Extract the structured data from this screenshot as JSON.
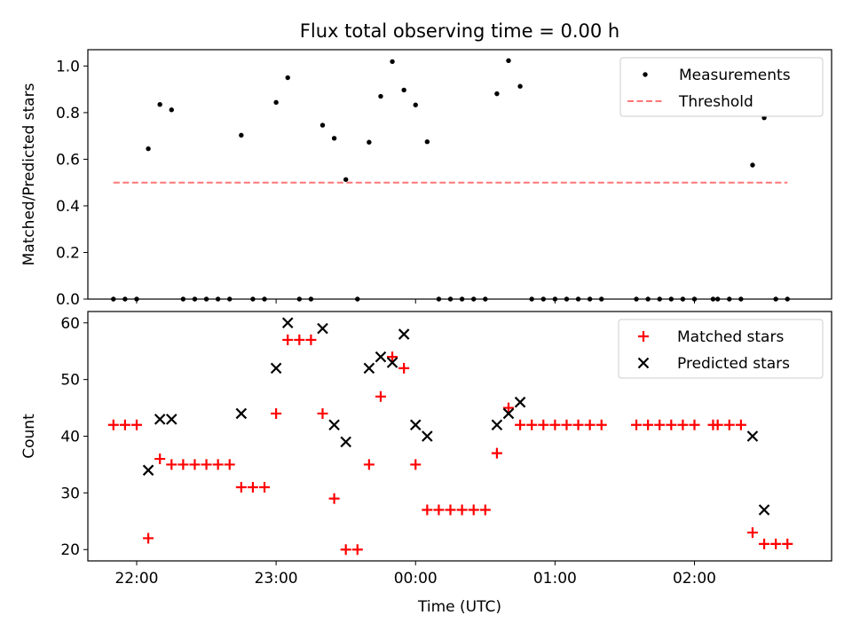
{
  "chart_data": [
    {
      "type": "scatter",
      "title": "Flux total observing time = 0.00 h",
      "xlabel": "",
      "ylabel": "Matched/Predicted stars",
      "ylim": [
        0,
        1.07
      ],
      "yticks": [
        0.0,
        0.2,
        0.4,
        0.6,
        0.8,
        1.0
      ],
      "ytick_labels": [
        "0.0",
        "0.2",
        "0.4",
        "0.6",
        "0.8",
        "1.0"
      ],
      "xlim": [
        "2024-01-01T21:39:00",
        "2024-01-02T02:59:00"
      ],
      "xticks": [
        "2024-01-01T22:00:00",
        "2024-01-01T23:00:00",
        "2024-01-02T00:00:00",
        "2024-01-02T01:00:00",
        "2024-01-02T02:00:00"
      ],
      "xtick_labels": [
        "",
        "",
        "",
        "",
        ""
      ],
      "legend_position": "top-right",
      "colors": {
        "measurements": "#000000",
        "threshold": "#ff7777"
      },
      "series": [
        {
          "name": "Measurements",
          "kind": "points",
          "points": [
            {
              "x": "2024-01-01T21:50:00",
              "y": 0.0
            },
            {
              "x": "2024-01-01T21:55:00",
              "y": 0.0
            },
            {
              "x": "2024-01-01T22:00:00",
              "y": 0.0
            },
            {
              "x": "2024-01-01T22:05:00",
              "y": 0.645
            },
            {
              "x": "2024-01-01T22:10:00",
              "y": 0.835
            },
            {
              "x": "2024-01-01T22:15:00",
              "y": 0.812
            },
            {
              "x": "2024-01-01T22:20:00",
              "y": 0.0
            },
            {
              "x": "2024-01-01T22:25:00",
              "y": 0.0
            },
            {
              "x": "2024-01-01T22:30:00",
              "y": 0.0
            },
            {
              "x": "2024-01-01T22:35:00",
              "y": 0.0
            },
            {
              "x": "2024-01-01T22:40:00",
              "y": 0.0
            },
            {
              "x": "2024-01-01T22:45:00",
              "y": 0.703
            },
            {
              "x": "2024-01-01T22:50:00",
              "y": 0.0
            },
            {
              "x": "2024-01-01T22:55:00",
              "y": 0.0
            },
            {
              "x": "2024-01-01T23:00:00",
              "y": 0.844
            },
            {
              "x": "2024-01-01T23:05:00",
              "y": 0.95
            },
            {
              "x": "2024-01-01T23:10:00",
              "y": 0.0
            },
            {
              "x": "2024-01-01T23:15:00",
              "y": 0.0
            },
            {
              "x": "2024-01-01T23:20:00",
              "y": 0.746
            },
            {
              "x": "2024-01-01T23:25:00",
              "y": 0.69
            },
            {
              "x": "2024-01-01T23:30:00",
              "y": 0.513
            },
            {
              "x": "2024-01-01T23:35:00",
              "y": 0.0
            },
            {
              "x": "2024-01-01T23:40:00",
              "y": 0.673
            },
            {
              "x": "2024-01-01T23:45:00",
              "y": 0.87
            },
            {
              "x": "2024-01-01T23:50:00",
              "y": 1.019
            },
            {
              "x": "2024-01-01T23:55:00",
              "y": 0.897
            },
            {
              "x": "2024-01-02T00:00:00",
              "y": 0.833
            },
            {
              "x": "2024-01-02T00:05:00",
              "y": 0.675
            },
            {
              "x": "2024-01-02T00:10:00",
              "y": 0.0
            },
            {
              "x": "2024-01-02T00:15:00",
              "y": 0.0
            },
            {
              "x": "2024-01-02T00:20:00",
              "y": 0.0
            },
            {
              "x": "2024-01-02T00:25:00",
              "y": 0.0
            },
            {
              "x": "2024-01-02T00:30:00",
              "y": 0.0
            },
            {
              "x": "2024-01-02T00:35:00",
              "y": 0.881
            },
            {
              "x": "2024-01-02T00:40:00",
              "y": 1.023
            },
            {
              "x": "2024-01-02T00:45:00",
              "y": 0.913
            },
            {
              "x": "2024-01-02T00:50:00",
              "y": 0.0
            },
            {
              "x": "2024-01-02T00:55:00",
              "y": 0.0
            },
            {
              "x": "2024-01-02T01:00:00",
              "y": 0.0
            },
            {
              "x": "2024-01-02T01:05:00",
              "y": 0.0
            },
            {
              "x": "2024-01-02T01:10:00",
              "y": 0.0
            },
            {
              "x": "2024-01-02T01:15:00",
              "y": 0.0
            },
            {
              "x": "2024-01-02T01:20:00",
              "y": 0.0
            },
            {
              "x": "2024-01-02T01:35:00",
              "y": 0.0
            },
            {
              "x": "2024-01-02T01:40:00",
              "y": 0.0
            },
            {
              "x": "2024-01-02T01:45:00",
              "y": 0.0
            },
            {
              "x": "2024-01-02T01:50:00",
              "y": 0.0
            },
            {
              "x": "2024-01-02T01:55:00",
              "y": 0.0
            },
            {
              "x": "2024-01-02T02:00:00",
              "y": 0.0
            },
            {
              "x": "2024-01-02T02:08:00",
              "y": 0.0
            },
            {
              "x": "2024-01-02T02:10:00",
              "y": 0.0
            },
            {
              "x": "2024-01-02T02:15:00",
              "y": 0.0
            },
            {
              "x": "2024-01-02T02:20:00",
              "y": 0.0
            },
            {
              "x": "2024-01-02T02:25:00",
              "y": 0.575
            },
            {
              "x": "2024-01-02T02:30:00",
              "y": 0.778
            },
            {
              "x": "2024-01-02T02:35:00",
              "y": 0.0
            },
            {
              "x": "2024-01-02T02:40:00",
              "y": 0.0
            }
          ]
        },
        {
          "name": "Threshold",
          "kind": "dashed-line",
          "points": [
            {
              "x": "2024-01-01T21:50:00",
              "y": 0.5
            },
            {
              "x": "2024-01-02T02:40:00",
              "y": 0.5
            }
          ]
        }
      ]
    },
    {
      "type": "scatter",
      "title": "",
      "xlabel": "Time (UTC)",
      "ylabel": "Count",
      "ylim": [
        18,
        62
      ],
      "yticks": [
        20,
        30,
        40,
        50,
        60
      ],
      "ytick_labels": [
        "20",
        "30",
        "40",
        "50",
        "60"
      ],
      "xlim": [
        "2024-01-01T21:39:00",
        "2024-01-02T02:59:00"
      ],
      "xticks": [
        "2024-01-01T22:00:00",
        "2024-01-01T23:00:00",
        "2024-01-02T00:00:00",
        "2024-01-02T01:00:00",
        "2024-01-02T02:00:00"
      ],
      "xtick_labels": [
        "22:00",
        "23:00",
        "00:00",
        "01:00",
        "02:00"
      ],
      "legend_position": "top-right",
      "colors": {
        "matched": "#ff0000",
        "predicted": "#000000"
      },
      "series": [
        {
          "name": "Matched stars",
          "kind": "plus",
          "points": [
            {
              "x": "2024-01-01T21:50:00",
              "y": 42
            },
            {
              "x": "2024-01-01T21:55:00",
              "y": 42
            },
            {
              "x": "2024-01-01T22:00:00",
              "y": 42
            },
            {
              "x": "2024-01-01T22:05:00",
              "y": 22
            },
            {
              "x": "2024-01-01T22:10:00",
              "y": 36
            },
            {
              "x": "2024-01-01T22:15:00",
              "y": 35
            },
            {
              "x": "2024-01-01T22:20:00",
              "y": 35
            },
            {
              "x": "2024-01-01T22:25:00",
              "y": 35
            },
            {
              "x": "2024-01-01T22:30:00",
              "y": 35
            },
            {
              "x": "2024-01-01T22:35:00",
              "y": 35
            },
            {
              "x": "2024-01-01T22:40:00",
              "y": 35
            },
            {
              "x": "2024-01-01T22:45:00",
              "y": 31
            },
            {
              "x": "2024-01-01T22:50:00",
              "y": 31
            },
            {
              "x": "2024-01-01T22:55:00",
              "y": 31
            },
            {
              "x": "2024-01-01T23:00:00",
              "y": 44
            },
            {
              "x": "2024-01-01T23:05:00",
              "y": 57
            },
            {
              "x": "2024-01-01T23:10:00",
              "y": 57
            },
            {
              "x": "2024-01-01T23:15:00",
              "y": 57
            },
            {
              "x": "2024-01-01T23:20:00",
              "y": 44
            },
            {
              "x": "2024-01-01T23:25:00",
              "y": 29
            },
            {
              "x": "2024-01-01T23:30:00",
              "y": 20
            },
            {
              "x": "2024-01-01T23:35:00",
              "y": 20
            },
            {
              "x": "2024-01-01T23:40:00",
              "y": 35
            },
            {
              "x": "2024-01-01T23:45:00",
              "y": 47
            },
            {
              "x": "2024-01-01T23:50:00",
              "y": 54
            },
            {
              "x": "2024-01-01T23:55:00",
              "y": 52
            },
            {
              "x": "2024-01-02T00:00:00",
              "y": 35
            },
            {
              "x": "2024-01-02T00:05:00",
              "y": 27
            },
            {
              "x": "2024-01-02T00:10:00",
              "y": 27
            },
            {
              "x": "2024-01-02T00:15:00",
              "y": 27
            },
            {
              "x": "2024-01-02T00:20:00",
              "y": 27
            },
            {
              "x": "2024-01-02T00:25:00",
              "y": 27
            },
            {
              "x": "2024-01-02T00:30:00",
              "y": 27
            },
            {
              "x": "2024-01-02T00:35:00",
              "y": 37
            },
            {
              "x": "2024-01-02T00:40:00",
              "y": 45
            },
            {
              "x": "2024-01-02T00:45:00",
              "y": 42
            },
            {
              "x": "2024-01-02T00:50:00",
              "y": 42
            },
            {
              "x": "2024-01-02T00:55:00",
              "y": 42
            },
            {
              "x": "2024-01-02T01:00:00",
              "y": 42
            },
            {
              "x": "2024-01-02T01:05:00",
              "y": 42
            },
            {
              "x": "2024-01-02T01:10:00",
              "y": 42
            },
            {
              "x": "2024-01-02T01:15:00",
              "y": 42
            },
            {
              "x": "2024-01-02T01:20:00",
              "y": 42
            },
            {
              "x": "2024-01-02T01:35:00",
              "y": 42
            },
            {
              "x": "2024-01-02T01:40:00",
              "y": 42
            },
            {
              "x": "2024-01-02T01:45:00",
              "y": 42
            },
            {
              "x": "2024-01-02T01:50:00",
              "y": 42
            },
            {
              "x": "2024-01-02T01:55:00",
              "y": 42
            },
            {
              "x": "2024-01-02T02:00:00",
              "y": 42
            },
            {
              "x": "2024-01-02T02:08:00",
              "y": 42
            },
            {
              "x": "2024-01-02T02:10:00",
              "y": 42
            },
            {
              "x": "2024-01-02T02:15:00",
              "y": 42
            },
            {
              "x": "2024-01-02T02:20:00",
              "y": 42
            },
            {
              "x": "2024-01-02T02:25:00",
              "y": 23
            },
            {
              "x": "2024-01-02T02:30:00",
              "y": 21
            },
            {
              "x": "2024-01-02T02:35:00",
              "y": 21
            },
            {
              "x": "2024-01-02T02:40:00",
              "y": 21
            }
          ]
        },
        {
          "name": "Predicted stars",
          "kind": "cross",
          "points": [
            {
              "x": "2024-01-01T22:05:00",
              "y": 34
            },
            {
              "x": "2024-01-01T22:10:00",
              "y": 43
            },
            {
              "x": "2024-01-01T22:15:00",
              "y": 43
            },
            {
              "x": "2024-01-01T22:45:00",
              "y": 44
            },
            {
              "x": "2024-01-01T23:00:00",
              "y": 52
            },
            {
              "x": "2024-01-01T23:05:00",
              "y": 60
            },
            {
              "x": "2024-01-01T23:20:00",
              "y": 59
            },
            {
              "x": "2024-01-01T23:25:00",
              "y": 42
            },
            {
              "x": "2024-01-01T23:30:00",
              "y": 39
            },
            {
              "x": "2024-01-01T23:40:00",
              "y": 52
            },
            {
              "x": "2024-01-01T23:45:00",
              "y": 54
            },
            {
              "x": "2024-01-01T23:50:00",
              "y": 53
            },
            {
              "x": "2024-01-01T23:55:00",
              "y": 58
            },
            {
              "x": "2024-01-02T00:00:00",
              "y": 42
            },
            {
              "x": "2024-01-02T00:05:00",
              "y": 40
            },
            {
              "x": "2024-01-02T00:35:00",
              "y": 42
            },
            {
              "x": "2024-01-02T00:40:00",
              "y": 44
            },
            {
              "x": "2024-01-02T00:45:00",
              "y": 46
            },
            {
              "x": "2024-01-02T02:25:00",
              "y": 40
            },
            {
              "x": "2024-01-02T02:30:00",
              "y": 27
            }
          ]
        }
      ]
    }
  ]
}
